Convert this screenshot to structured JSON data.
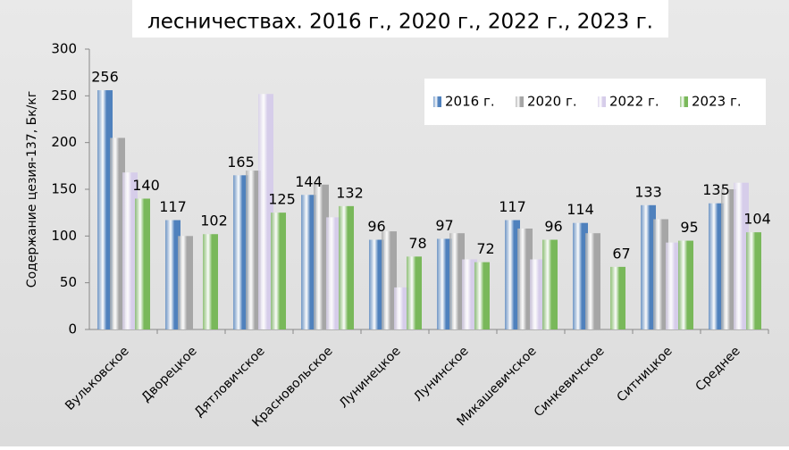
{
  "chart_data": {
    "type": "bar",
    "title": "лесничествах. 2016 г., 2020 г., 2022 г., 2023 г.",
    "y_label": "Содержание цезия-137, Бк/кг",
    "categories": [
      "Вульковское",
      "Дворецкое",
      "Дятловичское",
      "Красновольское",
      "Лунинецкое",
      "Лунинское",
      "Микашевичское",
      "Синкевичское",
      "Ситницкое",
      "Среднее"
    ],
    "series": [
      {
        "name": "2016 г.",
        "color": "#4f81bd",
        "show_labels": true,
        "values": [
          256,
          117,
          165,
          144,
          96,
          97,
          117,
          114,
          133,
          135
        ]
      },
      {
        "name": "2020 г.",
        "color": "#a6a6a6",
        "show_labels": false,
        "values": [
          205,
          100,
          170,
          155,
          105,
          103,
          108,
          103,
          118,
          150
        ]
      },
      {
        "name": "2022 г.",
        "color": "#d6cdea",
        "show_labels": false,
        "values": [
          168,
          null,
          252,
          120,
          45,
          75,
          75,
          null,
          93,
          157
        ]
      },
      {
        "name": "2023 г.",
        "color": "#79b85a",
        "show_labels": true,
        "values": [
          140,
          102,
          125,
          132,
          78,
          72,
          96,
          67,
          95,
          104
        ]
      }
    ],
    "ylim": [
      0,
      300
    ],
    "yticks": [
      0,
      50,
      100,
      150,
      200,
      250,
      300
    ],
    "legend": "top-right"
  }
}
